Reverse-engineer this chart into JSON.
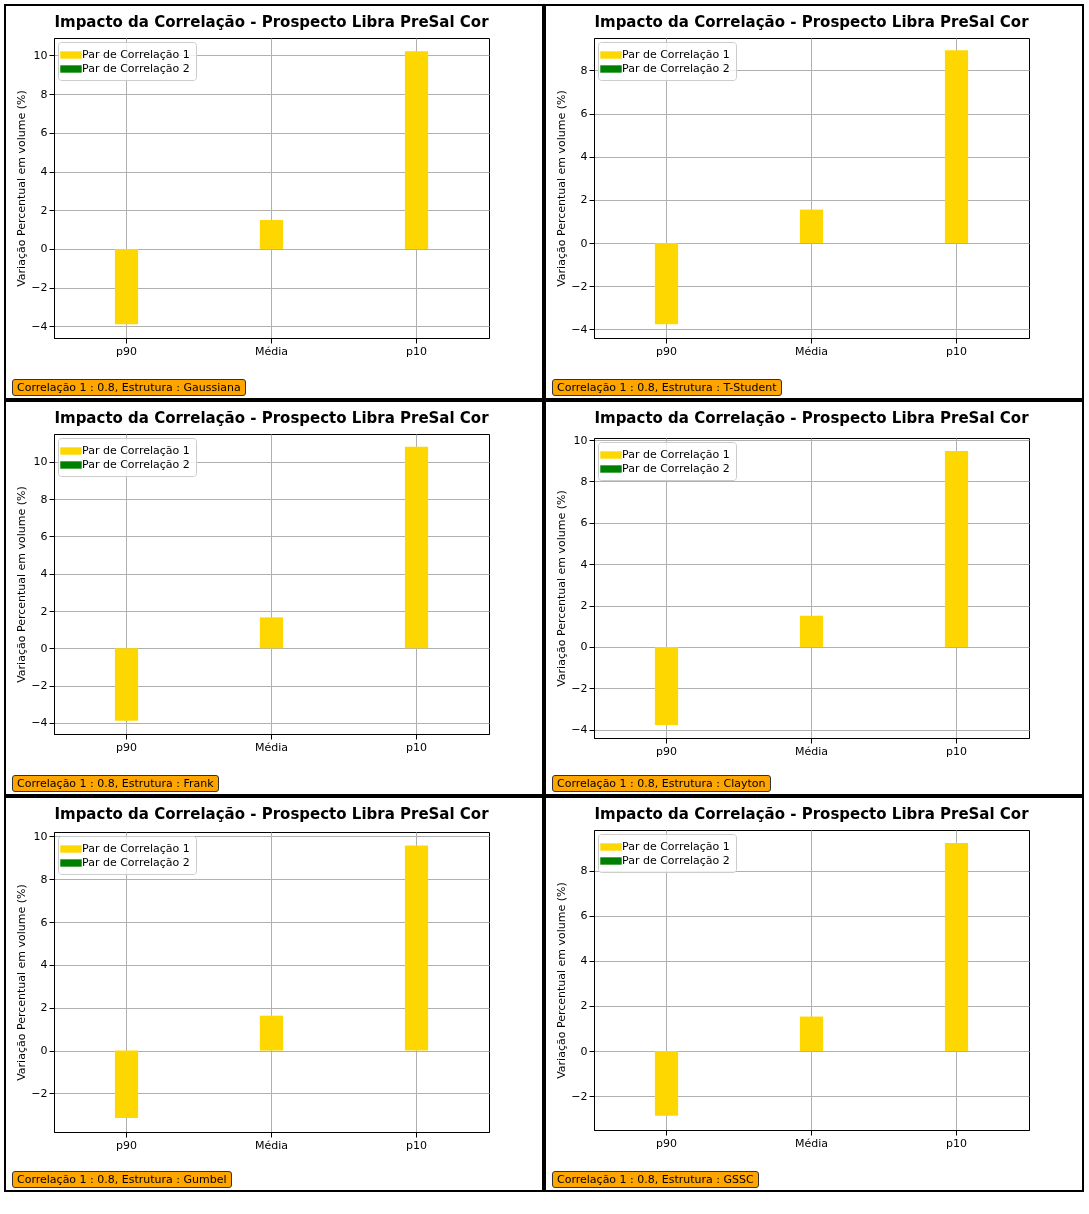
{
  "chart_data": [
    {
      "type": "bar",
      "title": "Impacto da Correlação - Prospecto Libra PreSal Cor",
      "ylabel": "Variação Percentual em volume (%)",
      "categories": [
        "p90",
        "Média",
        "p10"
      ],
      "series": [
        {
          "name": "Par de Correlação 1",
          "color": "#ffd700",
          "values": [
            -3.89,
            1.5,
            10.22
          ]
        },
        {
          "name": "Par de Correlação 2",
          "color": "#008000",
          "values": [
            null,
            null,
            null
          ]
        }
      ],
      "ylim": [
        -4.6,
        10.9
      ],
      "yticks": [
        -4,
        -2,
        0,
        2,
        4,
        6,
        8,
        10
      ],
      "grid": true,
      "legend": "top left",
      "annotations": [
        "Correlação 1 : 0.8, Estrutura : Gaussiana"
      ]
    },
    {
      "type": "bar",
      "title": "Impacto da Correlação - Prospecto Libra PreSal Cor",
      "ylabel": "Variação Percentual em volume (%)",
      "categories": [
        "p90",
        "Média",
        "p10"
      ],
      "series": [
        {
          "name": "Par de Correlação 1",
          "color": "#ffd700",
          "values": [
            -3.76,
            1.55,
            8.93
          ]
        },
        {
          "name": "Par de Correlação 2",
          "color": "#008000",
          "values": [
            null,
            null,
            null
          ]
        }
      ],
      "ylim": [
        -4.4,
        9.5
      ],
      "yticks": [
        -4,
        -2,
        0,
        2,
        4,
        6,
        8
      ],
      "grid": true,
      "legend": "top left",
      "annotations": [
        "Correlação 1 : 0.8, Estrutura : T-Student"
      ]
    },
    {
      "type": "bar",
      "title": "Impacto da Correlação - Prospecto Libra PreSal Cor",
      "ylabel": "Variação Percentual em volume (%)",
      "categories": [
        "p90",
        "Média",
        "p10"
      ],
      "series": [
        {
          "name": "Par de Correlação 1",
          "color": "#ffd700",
          "values": [
            -3.89,
            1.66,
            10.82
          ]
        },
        {
          "name": "Par de Correlação 2",
          "color": "#008000",
          "values": [
            null,
            null,
            null
          ]
        }
      ],
      "ylim": [
        -4.6,
        11.5
      ],
      "yticks": [
        -4,
        -2,
        0,
        2,
        4,
        6,
        8,
        10
      ],
      "grid": true,
      "legend": "top left",
      "annotations": [
        "Correlação 1 : 0.8, Estrutura : Frank"
      ]
    },
    {
      "type": "bar",
      "title": "Impacto da Correlação - Prospecto Libra PreSal Cor",
      "ylabel": "Variação Percentual em volume (%)",
      "categories": [
        "p90",
        "Média",
        "p10"
      ],
      "series": [
        {
          "name": "Par de Correlação 1",
          "color": "#ffd700",
          "values": [
            -3.77,
            1.51,
            9.47
          ]
        },
        {
          "name": "Par de Correlação 2",
          "color": "#008000",
          "values": [
            null,
            null,
            null
          ]
        }
      ],
      "ylim": [
        -4.4,
        10.1
      ],
      "yticks": [
        -4,
        -2,
        0,
        2,
        4,
        6,
        8,
        10
      ],
      "grid": true,
      "legend": "top left",
      "annotations": [
        "Correlação 1 : 0.8, Estrutura : Clayton"
      ]
    },
    {
      "type": "bar",
      "title": "Impacto da Correlação - Prospecto Libra PreSal Cor",
      "ylabel": "Variação Percentual em volume (%)",
      "categories": [
        "p90",
        "Média",
        "p10"
      ],
      "series": [
        {
          "name": "Par de Correlação 1",
          "color": "#ffd700",
          "values": [
            -3.15,
            1.63,
            9.57
          ]
        },
        {
          "name": "Par de Correlação 2",
          "color": "#008000",
          "values": [
            null,
            null,
            null
          ]
        }
      ],
      "ylim": [
        -3.8,
        10.2
      ],
      "yticks": [
        -2,
        0,
        2,
        4,
        6,
        8,
        10
      ],
      "grid": true,
      "legend": "top left",
      "annotations": [
        "Correlação 1 : 0.8, Estrutura : Gumbel"
      ]
    },
    {
      "type": "bar",
      "title": "Impacto da Correlação - Prospecto Libra PreSal Cor",
      "ylabel": "Variação Percentual em volume (%)",
      "categories": [
        "p90",
        "Média",
        "p10"
      ],
      "series": [
        {
          "name": "Par de Correlação 1",
          "color": "#ffd700",
          "values": [
            -2.87,
            1.53,
            9.22
          ]
        },
        {
          "name": "Par de Correlação 2",
          "color": "#008000",
          "values": [
            null,
            null,
            null
          ]
        }
      ],
      "ylim": [
        -3.5,
        9.8
      ],
      "yticks": [
        -2,
        0,
        2,
        4,
        6,
        8
      ],
      "grid": true,
      "legend": "top left",
      "annotations": [
        "Correlação 1 : 0.8, Estrutura : GSSC"
      ]
    }
  ]
}
